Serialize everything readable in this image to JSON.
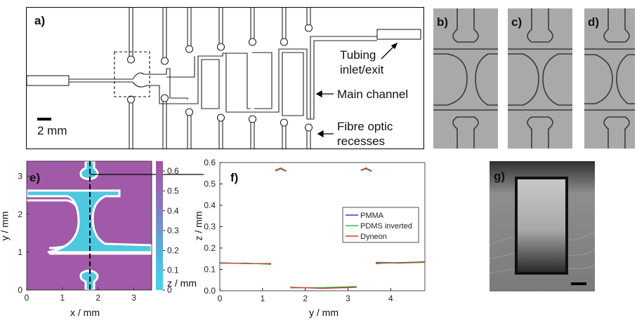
{
  "panels": {
    "a": {
      "label": "a)",
      "scale_bar": "2 mm",
      "annotations": {
        "tubing_line1": "Tubing",
        "tubing_line2": "inlet/exit",
        "main_channel": "Main channel",
        "fibre_line1": "Fibre optic",
        "fibre_line2": "recesses"
      }
    },
    "b": {
      "label": "b)"
    },
    "c": {
      "label": "c)"
    },
    "d": {
      "label": "d)"
    },
    "e": {
      "label": "e)",
      "xlabel": "x / mm",
      "ylabel": "y / mm",
      "colorbar_label": "z / mm",
      "colorbar_ticks": [
        "0.6",
        "0.5",
        "0.4",
        "0.3",
        "0.2",
        "0.1",
        "0"
      ],
      "colors": {
        "high": "#a05aa8",
        "low": "#4cc9e0"
      }
    },
    "f": {
      "label": "f)",
      "xlabel": "y / mm",
      "ylabel": "z / mm"
    },
    "g": {
      "label": "g)"
    }
  },
  "chart_data": [
    {
      "type": "heatmap",
      "panel": "e",
      "xlabel": "x / mm",
      "ylabel": "y / mm",
      "x_ticks": [
        0,
        1,
        2,
        3
      ],
      "y_ticks": [
        0,
        1,
        2,
        3
      ],
      "xlim": [
        0,
        3.5
      ],
      "ylim": [
        0,
        3.4
      ],
      "colorbar": {
        "label": "z / mm",
        "range": [
          0,
          0.65
        ],
        "ticks": [
          0,
          0.1,
          0.2,
          0.3,
          0.4,
          0.5,
          0.6
        ]
      }
    },
    {
      "type": "line",
      "panel": "f",
      "xlabel": "y / mm",
      "ylabel": "z / mm",
      "xlim": [
        0,
        4.8
      ],
      "ylim": [
        0,
        0.6
      ],
      "x_ticks": [
        0,
        1,
        2,
        3,
        4
      ],
      "y_ticks": [
        0,
        0.1,
        0.2,
        0.3,
        0.4,
        0.5,
        0.6
      ],
      "legend_position": "right",
      "series": [
        {
          "name": "PMMA",
          "color": "#3b3bb0",
          "segments": [
            [
              [
                0,
                0.13
              ],
              [
                0.6,
                0.129
              ],
              [
                1.2,
                0.125
              ]
            ],
            [
              [
                1.3,
                0.565
              ],
              [
                1.42,
                0.573
              ],
              [
                1.55,
                0.562
              ]
            ],
            [
              [
                1.65,
                0.015
              ],
              [
                2.4,
                0.012
              ],
              [
                3.2,
                0.017
              ]
            ],
            [
              [
                3.3,
                0.565
              ],
              [
                3.42,
                0.573
              ],
              [
                3.55,
                0.562
              ]
            ],
            [
              [
                3.65,
                0.127
              ],
              [
                4.2,
                0.132
              ],
              [
                4.8,
                0.134
              ]
            ]
          ]
        },
        {
          "name": "PDMS inverted",
          "color": "#3fb83f",
          "segments": [
            [
              [
                0,
                0.128
              ],
              [
                0.6,
                0.13
              ],
              [
                1.2,
                0.123
              ]
            ],
            [
              [
                1.3,
                0.56
              ],
              [
                1.42,
                0.57
              ],
              [
                1.55,
                0.558
              ]
            ],
            [
              [
                1.65,
                0.013
              ],
              [
                2.4,
                0.015
              ],
              [
                3.2,
                0.02
              ]
            ],
            [
              [
                3.3,
                0.562
              ],
              [
                3.42,
                0.57
              ],
              [
                3.55,
                0.558
              ]
            ],
            [
              [
                3.65,
                0.13
              ],
              [
                4.2,
                0.129
              ],
              [
                4.8,
                0.132
              ]
            ]
          ]
        },
        {
          "name": "Dyneon",
          "color": "#d83030",
          "segments": [
            [
              [
                0,
                0.131
              ],
              [
                0.6,
                0.127
              ],
              [
                1.2,
                0.128
              ]
            ],
            [
              [
                1.3,
                0.562
              ],
              [
                1.42,
                0.575
              ],
              [
                1.55,
                0.56
              ]
            ],
            [
              [
                1.65,
                0.017
              ],
              [
                2.4,
                0.011
              ],
              [
                3.2,
                0.016
              ]
            ],
            [
              [
                3.3,
                0.563
              ],
              [
                3.42,
                0.575
              ],
              [
                3.55,
                0.56
              ]
            ],
            [
              [
                3.65,
                0.133
              ],
              [
                4.2,
                0.131
              ],
              [
                4.8,
                0.136
              ]
            ]
          ]
        }
      ]
    }
  ]
}
